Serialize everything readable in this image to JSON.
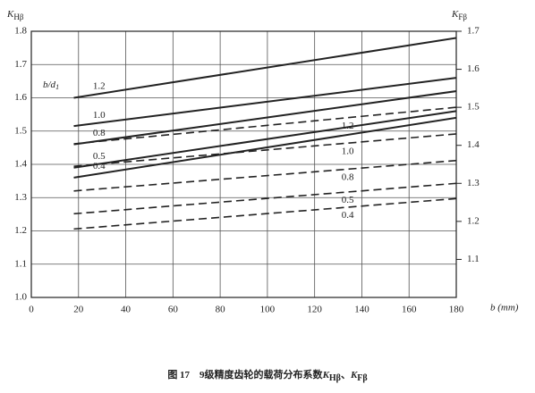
{
  "chart_data": {
    "type": "line",
    "ylabel": {
      "symbol": "K",
      "subscript": "Hβ"
    },
    "y2label": {
      "symbol": "K",
      "subscript": "Fβ"
    },
    "xlabel": "b (mm)",
    "annotation": {
      "text": "b/d",
      "subscript": "1"
    },
    "caption": {
      "text": "图 17　9级精度齿轮的载荷分布系数",
      "sep": "、"
    },
    "x": [
      18,
      180
    ],
    "xlim": [
      0,
      180
    ],
    "xticks": [
      0,
      20,
      40,
      60,
      80,
      100,
      120,
      140,
      160,
      180
    ],
    "ylim": [
      1.0,
      1.8
    ],
    "yticks": [
      {
        "value": 1.0,
        "label": "1.0"
      },
      1.1,
      1.2,
      1.3,
      1.4,
      1.5,
      1.6,
      1.7,
      1.8
    ],
    "y2lim": [
      1.0,
      1.7
    ],
    "y2ticks": [
      1.1,
      1.2,
      1.3,
      1.4,
      1.5,
      1.6,
      1.7
    ],
    "grid": true,
    "series": [
      {
        "name": "1.2",
        "color": "#222",
        "values": [
          1.6,
          1.78
        ]
      },
      {
        "name": "1.0",
        "color": "#222",
        "values": [
          1.515,
          1.66
        ]
      },
      {
        "name": "0.8",
        "color": "#222",
        "values": [
          1.46,
          1.62
        ]
      },
      {
        "name": "0.5",
        "color": "#222",
        "values": [
          1.39,
          1.56
        ]
      },
      {
        "name": "0.4",
        "color": "#222",
        "values": [
          1.36,
          1.54
        ]
      },
      {
        "name": "1.2",
        "color": "#222",
        "axis": "y2",
        "dashed": true,
        "values": [
          1.404,
          1.5
        ]
      },
      {
        "name": "1.0",
        "color": "#222",
        "axis": "y2",
        "dashed": true,
        "values": [
          1.345,
          1.43
        ]
      },
      {
        "name": "0.8",
        "color": "#222",
        "axis": "y2",
        "dashed": true,
        "values": [
          1.28,
          1.36
        ]
      },
      {
        "name": "0.5",
        "color": "#222",
        "axis": "y2",
        "dashed": true,
        "values": [
          1.22,
          1.3
        ]
      },
      {
        "name": "0.4",
        "color": "#222",
        "axis": "y2",
        "dashed": true,
        "values": [
          1.18,
          1.26
        ]
      }
    ]
  }
}
